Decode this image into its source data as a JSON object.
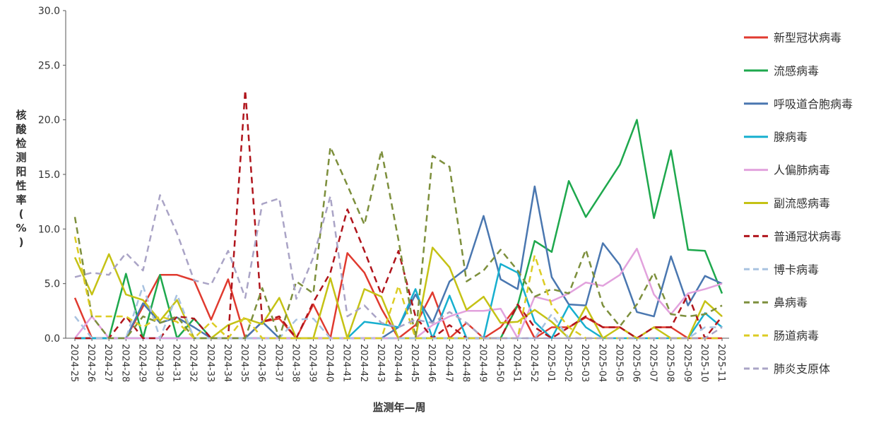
{
  "chart_data": {
    "type": "line",
    "xlabel": "监测年—周",
    "ylabel": "核酸检测阳性率(%)",
    "ylim": [
      0,
      30
    ],
    "yticks": [
      "0.0",
      "5.0",
      "10.0",
      "15.0",
      "20.0",
      "25.0",
      "30.0"
    ],
    "grid": false,
    "legend_position": "right",
    "categories": [
      "2024-25",
      "2024-26",
      "2024-27",
      "2024-28",
      "2024-29",
      "2024-30",
      "2024-31",
      "2024-32",
      "2024-33",
      "2024-34",
      "2024-35",
      "2024-36",
      "2024-37",
      "2024-38",
      "2024-39",
      "2024-40",
      "2024-41",
      "2024-42",
      "2024-43",
      "2024-44",
      "2024-45",
      "2024-46",
      "2024-47",
      "2024-48",
      "2024-49",
      "2024-50",
      "2024-51",
      "2024-52",
      "2025-01",
      "2025-02",
      "2025-03",
      "2025-04",
      "2025-05",
      "2025-06",
      "2025-07",
      "2025-08",
      "2025-09",
      "2025-10",
      "2025-11"
    ],
    "series": [
      {
        "name": "新型冠状病毒",
        "color": "#e03a2f",
        "dash": "solid",
        "values": [
          3.7,
          0,
          0,
          0,
          2.9,
          5.8,
          5.8,
          5.3,
          1.7,
          5.4,
          0,
          1.5,
          1.8,
          0,
          3.1,
          0,
          7.8,
          6.0,
          2.7,
          0,
          1.2,
          4.2,
          0,
          1.4,
          0,
          1.0,
          3.0,
          0,
          1.0,
          1.0,
          1.9,
          1.0,
          1.0,
          0,
          1.0,
          1.0,
          0,
          0,
          0
        ]
      },
      {
        "name": "流感病毒",
        "color": "#1ea84d",
        "dash": "solid",
        "values": [
          0,
          0,
          0,
          5.9,
          0,
          5.8,
          0,
          1.8,
          0,
          0,
          0,
          0,
          0,
          0,
          0,
          0,
          0,
          0,
          0,
          0,
          0,
          0,
          0,
          0,
          0,
          0,
          3.0,
          8.9,
          7.9,
          14.4,
          11.1,
          13.5,
          15.9,
          20.0,
          11.0,
          17.2,
          8.1,
          8.0,
          4.1
        ]
      },
      {
        "name": "呼吸道合胞病毒",
        "color": "#4a77b0",
        "dash": "solid",
        "values": [
          0,
          0,
          0,
          0,
          3.2,
          1.4,
          1.9,
          1.0,
          0,
          0,
          0,
          1.5,
          0,
          0,
          0,
          0,
          0,
          0,
          0,
          1.0,
          4.0,
          1.4,
          5.2,
          6.4,
          11.2,
          5.4,
          4.5,
          13.9,
          5.6,
          3.1,
          3.0,
          8.7,
          6.7,
          2.4,
          2.0,
          7.5,
          3.0,
          5.7,
          5.0
        ]
      },
      {
        "name": "腺病毒",
        "color": "#17afcf",
        "dash": "solid",
        "values": [
          0,
          0,
          0,
          0,
          0,
          0,
          0,
          0,
          0,
          0,
          0,
          0,
          0,
          0,
          0,
          0,
          0,
          1.5,
          1.3,
          1.0,
          4.5,
          0,
          3.9,
          0,
          0,
          6.8,
          6.0,
          1.5,
          0,
          3.0,
          1.0,
          0,
          0,
          0,
          0,
          0,
          0,
          2.3,
          1.0
        ]
      },
      {
        "name": "人偏肺病毒",
        "color": "#e2a2dd",
        "dash": "solid",
        "values": [
          0,
          2.0,
          0,
          0,
          0,
          0,
          0,
          0,
          0,
          0,
          0,
          0,
          0,
          0,
          0,
          0,
          0,
          0,
          0,
          0,
          0,
          1.2,
          2.0,
          2.5,
          2.5,
          2.7,
          0,
          3.8,
          3.4,
          4.1,
          5.1,
          4.8,
          5.8,
          8.2,
          4.0,
          2.2,
          4.1,
          4.5,
          5.0
        ]
      },
      {
        "name": "副流感病毒",
        "color": "#c5c215",
        "dash": "solid",
        "values": [
          7.4,
          4.0,
          7.7,
          4.0,
          3.5,
          1.6,
          3.5,
          0,
          0,
          1.2,
          1.8,
          1.3,
          3.7,
          0,
          0,
          5.5,
          0,
          4.5,
          3.8,
          0,
          0,
          8.3,
          6.5,
          2.6,
          3.8,
          1.4,
          1.5,
          2.6,
          1.5,
          0,
          2.9,
          0,
          1.0,
          0,
          1.0,
          0,
          0,
          3.4,
          2.0
        ]
      },
      {
        "name": "普通冠状病毒",
        "color": "#b0151c",
        "dash": "dashed",
        "values": [
          0,
          0,
          0,
          2.0,
          0,
          0,
          2.0,
          1.8,
          0,
          0,
          22.7,
          1.5,
          2.0,
          0,
          3.3,
          6.0,
          11.8,
          8.0,
          4.0,
          8.0,
          2.0,
          0,
          1.2,
          0,
          0,
          0,
          3.1,
          1.0,
          0,
          1.0,
          2.0,
          1.0,
          1.0,
          0,
          1.0,
          1.0,
          4.0,
          0,
          2.0
        ]
      },
      {
        "name": "博卡病毒",
        "color": "#a8c2e0",
        "dash": "dashed",
        "values": [
          2.0,
          0,
          0,
          0,
          4.8,
          0,
          4.0,
          0,
          0,
          0,
          0,
          0,
          0,
          1.7,
          1.8,
          0,
          0,
          0,
          0,
          0,
          0,
          0,
          0,
          0,
          0,
          0,
          0,
          0,
          2.2,
          0,
          0,
          0,
          0,
          0,
          0,
          0,
          0,
          1.0,
          1.0
        ]
      },
      {
        "name": "鼻病毒",
        "color": "#7d8f3c",
        "dash": "dashed",
        "values": [
          11.1,
          2.0,
          0,
          0,
          2.0,
          1.4,
          2.0,
          0,
          0,
          0,
          0,
          4.6,
          0,
          5.2,
          4.1,
          17.5,
          14.0,
          10.4,
          17.2,
          9.0,
          0,
          16.7,
          15.7,
          5.2,
          6.2,
          8.1,
          6.2,
          3.8,
          4.5,
          4.1,
          8.1,
          3.0,
          1.1,
          3.1,
          6.0,
          2.2,
          2.0,
          2.2,
          3.0
        ]
      },
      {
        "name": "肠道病毒",
        "color": "#dccc23",
        "dash": "dashed",
        "values": [
          9.3,
          2.0,
          2.0,
          2.0,
          1.0,
          2.0,
          1.5,
          0,
          1.5,
          0,
          2.0,
          0,
          0,
          0,
          0,
          0,
          0,
          0,
          0,
          4.8,
          0,
          0,
          0,
          0,
          0,
          0,
          0,
          7.6,
          3.0,
          1.0,
          0,
          0,
          0,
          0,
          0,
          0,
          0,
          0,
          0
        ]
      },
      {
        "name": "肺炎支原体",
        "color": "#aaa4c6",
        "dash": "dashed",
        "values": [
          5.6,
          6.0,
          5.8,
          7.8,
          6.2,
          13.1,
          9.6,
          5.3,
          4.9,
          8.0,
          3.7,
          12.3,
          12.8,
          3.6,
          7.4,
          13.0,
          2.0,
          3.0,
          1.4,
          1.0,
          1.7,
          1.4,
          2.4,
          1.4,
          0,
          0,
          0,
          0,
          0,
          0,
          0,
          0,
          0,
          0,
          0,
          0,
          0,
          0,
          1.0
        ]
      }
    ]
  }
}
